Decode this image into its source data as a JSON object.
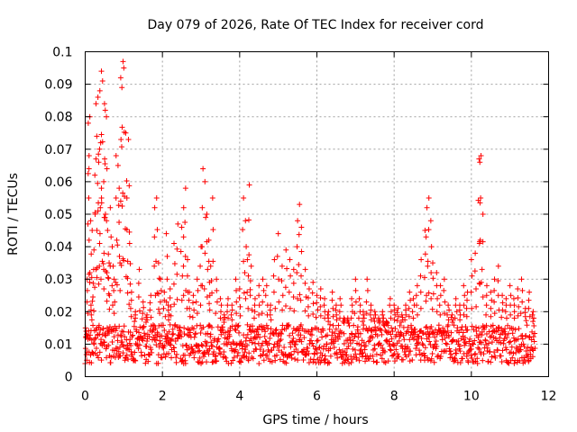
{
  "chart_data": {
    "type": "scatter",
    "title": "Day 079 of 2026, Rate Of TEC Index for receiver cord",
    "xlabel": "GPS time / hours",
    "ylabel": "ROTI / TECUs",
    "xlim": [
      0,
      12
    ],
    "ylim": [
      0,
      0.1
    ],
    "xticks": [
      0,
      2,
      4,
      6,
      8,
      10,
      12
    ],
    "yticks": [
      0,
      0.01,
      0.02,
      0.03,
      0.04,
      0.05,
      0.06,
      0.07,
      0.08,
      0.09,
      0.1
    ],
    "xtick_labels": [
      "0",
      "2",
      "4",
      "6",
      "8",
      "10",
      "12"
    ],
    "ytick_labels": [
      "0",
      "0.01",
      "0.02",
      "0.03",
      "0.04",
      "0.05",
      "0.06",
      "0.07",
      "0.08",
      "0.09",
      "0.1"
    ],
    "grid": true,
    "marker": "+",
    "color": "#ff0000",
    "series": [
      {
        "name": "ROTI",
        "points": [
          [
            0.02,
            0.012
          ],
          [
            0.05,
            0.03
          ],
          [
            0.08,
            0.078
          ],
          [
            0.1,
            0.068
          ],
          [
            0.12,
            0.08
          ],
          [
            0.15,
            0.022
          ],
          [
            0.18,
            0.045
          ],
          [
            0.22,
            0.033
          ],
          [
            0.25,
            0.062
          ],
          [
            0.28,
            0.084
          ],
          [
            0.3,
            0.074
          ],
          [
            0.33,
            0.086
          ],
          [
            0.35,
            0.066
          ],
          [
            0.38,
            0.088
          ],
          [
            0.4,
            0.072
          ],
          [
            0.42,
            0.094
          ],
          [
            0.45,
            0.091
          ],
          [
            0.48,
            0.06
          ],
          [
            0.5,
            0.084
          ],
          [
            0.52,
            0.082
          ],
          [
            0.55,
            0.08
          ],
          [
            0.58,
            0.045
          ],
          [
            0.62,
            0.035
          ],
          [
            0.65,
            0.052
          ],
          [
            0.7,
            0.04
          ],
          [
            0.75,
            0.03
          ],
          [
            0.8,
            0.068
          ],
          [
            0.85,
            0.065
          ],
          [
            0.88,
            0.058
          ],
          [
            0.92,
            0.092
          ],
          [
            0.95,
            0.089
          ],
          [
            0.98,
            0.097
          ],
          [
            1.0,
            0.095
          ],
          [
            1.05,
            0.075
          ],
          [
            1.08,
            0.055
          ],
          [
            1.12,
            0.073
          ],
          [
            1.15,
            0.041
          ],
          [
            1.2,
            0.026
          ],
          [
            1.3,
            0.02
          ],
          [
            1.4,
            0.033
          ],
          [
            1.5,
            0.023
          ],
          [
            1.6,
            0.019
          ],
          [
            1.7,
            0.025
          ],
          [
            1.8,
            0.052
          ],
          [
            1.85,
            0.055
          ],
          [
            1.9,
            0.035
          ],
          [
            1.95,
            0.03
          ],
          [
            2.05,
            0.026
          ],
          [
            2.1,
            0.044
          ],
          [
            2.15,
            0.022
          ],
          [
            2.2,
            0.027
          ],
          [
            2.3,
            0.041
          ],
          [
            2.4,
            0.047
          ],
          [
            2.5,
            0.046
          ],
          [
            2.55,
            0.052
          ],
          [
            2.6,
            0.058
          ],
          [
            2.65,
            0.036
          ],
          [
            2.7,
            0.026
          ],
          [
            2.8,
            0.025
          ],
          [
            2.9,
            0.03
          ],
          [
            3.0,
            0.04
          ],
          [
            3.05,
            0.064
          ],
          [
            3.1,
            0.06
          ],
          [
            3.15,
            0.05
          ],
          [
            3.2,
            0.042
          ],
          [
            3.25,
            0.034
          ],
          [
            3.3,
            0.055
          ],
          [
            3.4,
            0.03
          ],
          [
            3.5,
            0.024
          ],
          [
            3.6,
            0.019
          ],
          [
            3.7,
            0.024
          ],
          [
            3.8,
            0.022
          ],
          [
            3.9,
            0.03
          ],
          [
            4.0,
            0.027
          ],
          [
            4.1,
            0.055
          ],
          [
            4.15,
            0.048
          ],
          [
            4.2,
            0.036
          ],
          [
            4.25,
            0.059
          ],
          [
            4.3,
            0.034
          ],
          [
            4.4,
            0.024
          ],
          [
            4.5,
            0.028
          ],
          [
            4.6,
            0.03
          ],
          [
            4.7,
            0.028
          ],
          [
            4.8,
            0.022
          ],
          [
            4.9,
            0.036
          ],
          [
            5.0,
            0.044
          ],
          [
            5.1,
            0.034
          ],
          [
            5.2,
            0.039
          ],
          [
            5.3,
            0.036
          ],
          [
            5.4,
            0.033
          ],
          [
            5.5,
            0.048
          ],
          [
            5.55,
            0.053
          ],
          [
            5.6,
            0.046
          ],
          [
            5.7,
            0.033
          ],
          [
            5.8,
            0.027
          ],
          [
            5.9,
            0.029
          ],
          [
            6.0,
            0.025
          ],
          [
            6.1,
            0.027
          ],
          [
            6.2,
            0.024
          ],
          [
            6.3,
            0.02
          ],
          [
            6.4,
            0.026
          ],
          [
            6.5,
            0.022
          ],
          [
            6.6,
            0.024
          ],
          [
            6.7,
            0.018
          ],
          [
            6.8,
            0.018
          ],
          [
            6.9,
            0.024
          ],
          [
            7.0,
            0.03
          ],
          [
            7.1,
            0.024
          ],
          [
            7.2,
            0.02
          ],
          [
            7.3,
            0.03
          ],
          [
            7.4,
            0.022
          ],
          [
            7.5,
            0.02
          ],
          [
            7.6,
            0.018
          ],
          [
            7.7,
            0.02
          ],
          [
            7.8,
            0.017
          ],
          [
            7.9,
            0.024
          ],
          [
            8.0,
            0.022
          ],
          [
            8.1,
            0.021
          ],
          [
            8.2,
            0.019
          ],
          [
            8.3,
            0.022
          ],
          [
            8.4,
            0.026
          ],
          [
            8.5,
            0.024
          ],
          [
            8.6,
            0.028
          ],
          [
            8.7,
            0.036
          ],
          [
            8.8,
            0.045
          ],
          [
            8.85,
            0.052
          ],
          [
            8.9,
            0.055
          ],
          [
            8.95,
            0.048
          ],
          [
            9.0,
            0.035
          ],
          [
            9.1,
            0.032
          ],
          [
            9.2,
            0.028
          ],
          [
            9.3,
            0.03
          ],
          [
            9.4,
            0.022
          ],
          [
            9.5,
            0.019
          ],
          [
            9.6,
            0.024
          ],
          [
            9.7,
            0.022
          ],
          [
            9.8,
            0.028
          ],
          [
            9.9,
            0.026
          ],
          [
            10.0,
            0.036
          ],
          [
            10.1,
            0.038
          ],
          [
            10.2,
            0.067
          ],
          [
            10.22,
            0.066
          ],
          [
            10.25,
            0.068
          ],
          [
            10.3,
            0.05
          ],
          [
            10.4,
            0.028
          ],
          [
            10.5,
            0.026
          ],
          [
            10.6,
            0.03
          ],
          [
            10.7,
            0.034
          ],
          [
            10.8,
            0.025
          ],
          [
            10.9,
            0.024
          ],
          [
            11.0,
            0.028
          ],
          [
            11.1,
            0.024
          ],
          [
            11.2,
            0.027
          ],
          [
            11.3,
            0.03
          ],
          [
            11.4,
            0.021
          ],
          [
            11.5,
            0.026
          ],
          [
            11.6,
            0.02
          ]
        ]
      }
    ],
    "baseline_band": {
      "x_start": 0,
      "x_end": 11.65,
      "typical_min": 0.004,
      "typical_max": 0.016,
      "point_spacing_hours": 0.01
    }
  }
}
